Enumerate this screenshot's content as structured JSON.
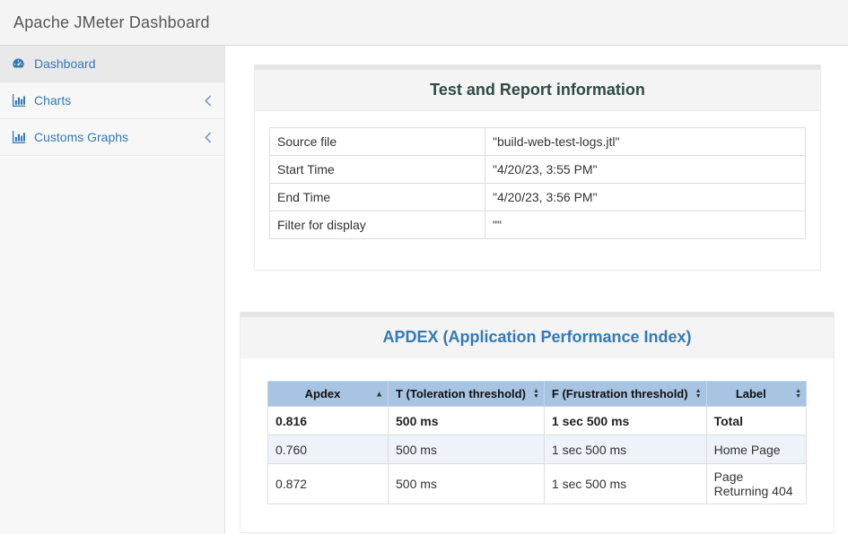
{
  "navbar": {
    "title": "Apache JMeter Dashboard"
  },
  "sidebar": {
    "items": [
      {
        "label": "Dashboard",
        "icon": "dashboard-gauge-icon",
        "active": true,
        "collapsible": false
      },
      {
        "label": "Charts",
        "icon": "bar-chart-icon",
        "active": false,
        "collapsible": true
      },
      {
        "label": "Customs Graphs",
        "icon": "bar-chart-icon",
        "active": false,
        "collapsible": true
      }
    ]
  },
  "test_info_panel": {
    "title": "Test and Report information",
    "rows": [
      {
        "label": "Source file",
        "value": "\"build-web-test-logs.jtl\""
      },
      {
        "label": "Start Time",
        "value": "\"4/20/23, 3:55 PM\""
      },
      {
        "label": "End Time",
        "value": "\"4/20/23, 3:56 PM\""
      },
      {
        "label": "Filter for display",
        "value": "\"\""
      }
    ]
  },
  "apdex_panel": {
    "title": "APDEX (Application Performance Index)",
    "columns": [
      {
        "label": "Apdex",
        "sort": "asc"
      },
      {
        "label": "T (Toleration threshold)",
        "sort": "unsorted"
      },
      {
        "label": "F (Frustration threshold)",
        "sort": "unsorted"
      },
      {
        "label": "Label",
        "sort": "unsorted"
      }
    ],
    "rows": [
      {
        "cells": [
          "0.816",
          "500 ms",
          "1 sec 500 ms",
          "Total"
        ],
        "emphasis": true
      },
      {
        "cells": [
          "0.760",
          "500 ms",
          "1 sec 500 ms",
          "Home Page"
        ],
        "emphasis": false
      },
      {
        "cells": [
          "0.872",
          "500 ms",
          "1 sec 500 ms",
          "Page Returning 404"
        ],
        "emphasis": false
      }
    ]
  },
  "colors": {
    "accent_blue": "#337ab7",
    "panel_title_teal": "#2f4a46",
    "table_header_bg": "#a7c4e2",
    "striped_row_bg": "#edf3f9",
    "navbar_bg": "#f4f4f4"
  }
}
